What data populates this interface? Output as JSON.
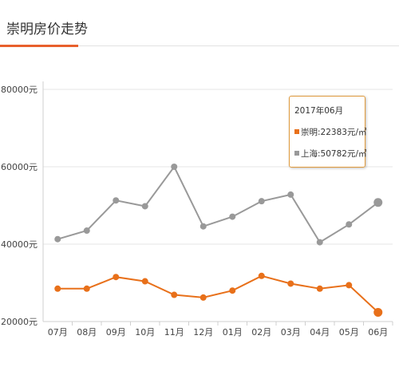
{
  "header": {
    "title": "崇明房价走势"
  },
  "colors": {
    "accent": "#e8602c",
    "series_orange": "#e8701a",
    "series_gray": "#999999"
  },
  "tooltip": {
    "title": "2017年06月",
    "rows": [
      {
        "label": "崇明:22383元/㎡",
        "color": "#e8701a"
      },
      {
        "label": "上海:50782元/㎡",
        "color": "#999999"
      }
    ]
  },
  "chart_data": {
    "type": "line",
    "categories": [
      "07月",
      "08月",
      "09月",
      "10月",
      "11月",
      "12月",
      "01月",
      "02月",
      "03月",
      "04月",
      "05月",
      "06月"
    ],
    "series": [
      {
        "name": "崇明",
        "color": "#e8701a",
        "values": [
          28500,
          28500,
          31500,
          30400,
          26900,
          26200,
          28000,
          31800,
          29800,
          28500,
          29400,
          22383
        ]
      },
      {
        "name": "上海",
        "color": "#999999",
        "values": [
          41300,
          43500,
          51300,
          49800,
          60000,
          44600,
          47100,
          51100,
          52800,
          40500,
          45100,
          50782
        ]
      }
    ],
    "ylim": [
      20000,
      80000
    ],
    "yticks": [
      20000,
      40000,
      60000,
      80000
    ],
    "yticklabels": [
      "20000元",
      "40000元",
      "60000元",
      "80000元"
    ],
    "grid": true,
    "title": "",
    "xlabel": "",
    "ylabel": ""
  }
}
